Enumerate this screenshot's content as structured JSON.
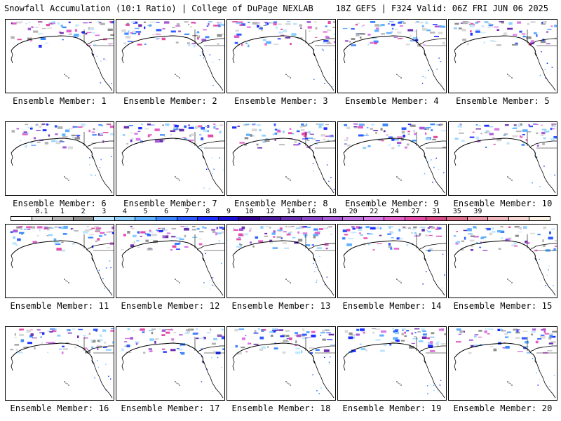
{
  "header": {
    "title": "Snowfall Accumulation (10:1 Ratio) | College of DuPage NEXLAB",
    "run_info": "18Z GEFS | F324 Valid: 06Z FRI JUN 06 2025"
  },
  "panels": [
    {
      "label": "Ensemble Member: 1"
    },
    {
      "label": "Ensemble Member: 2"
    },
    {
      "label": "Ensemble Member: 3"
    },
    {
      "label": "Ensemble Member: 4"
    },
    {
      "label": "Ensemble Member: 5"
    },
    {
      "label": "Ensemble Member: 6"
    },
    {
      "label": "Ensemble Member: 7"
    },
    {
      "label": "Ensemble Member: 8"
    },
    {
      "label": "Ensemble Member: 9"
    },
    {
      "label": "Ensemble Member: 10"
    },
    {
      "label": "Ensemble Member: 11"
    },
    {
      "label": "Ensemble Member: 12"
    },
    {
      "label": "Ensemble Member: 13"
    },
    {
      "label": "Ensemble Member: 14"
    },
    {
      "label": "Ensemble Member: 15"
    },
    {
      "label": "Ensemble Member: 16"
    },
    {
      "label": "Ensemble Member: 17"
    },
    {
      "label": "Ensemble Member: 18"
    },
    {
      "label": "Ensemble Member: 19"
    },
    {
      "label": "Ensemble Member: 20"
    }
  ],
  "colorbar": {
    "labels": [
      "0.1",
      "1",
      "2",
      "3",
      "4",
      "5",
      "6",
      "7",
      "8",
      "9",
      "10",
      "12",
      "14",
      "16",
      "18",
      "20",
      "22",
      "24",
      "27",
      "31",
      "35",
      "39"
    ],
    "colors": [
      "#ffffff",
      "#d9d9d9",
      "#b4b4b4",
      "#8f8f8f",
      "#bfe7ff",
      "#8fd0ff",
      "#5fb0ff",
      "#3c87ff",
      "#2e5cff",
      "#1e2fff",
      "#1a10d8",
      "#320090",
      "#4c1a9c",
      "#6a2fb0",
      "#8a45c8",
      "#a65ad6",
      "#c070e0",
      "#d878e6",
      "#e060c8",
      "#e44aa8",
      "#d84a88",
      "#e07090",
      "#e898a8",
      "#f0b8bc",
      "#f6d6d2",
      "#fdf2e6"
    ]
  }
}
